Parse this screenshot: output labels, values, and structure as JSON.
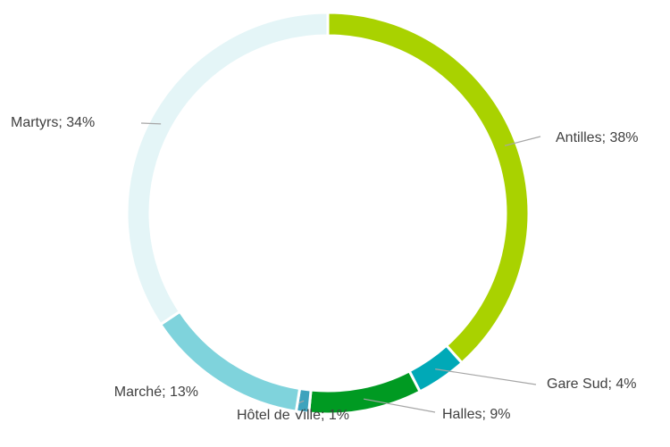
{
  "chart_data": {
    "type": "donut",
    "value_labels": [
      "Antilles; 38%",
      "Gare Sud; 4%",
      "Halles; 9%",
      "Hôtel de Ville; 1%",
      "Marché; 13%",
      "Martyrs; 34%"
    ],
    "values": [
      38,
      4,
      9,
      1,
      13,
      34
    ],
    "colors": [
      "#a9d200",
      "#00a9b7",
      "#009a22",
      "#3fa3bd",
      "#7fd3dc",
      "#e4f5f7"
    ]
  }
}
